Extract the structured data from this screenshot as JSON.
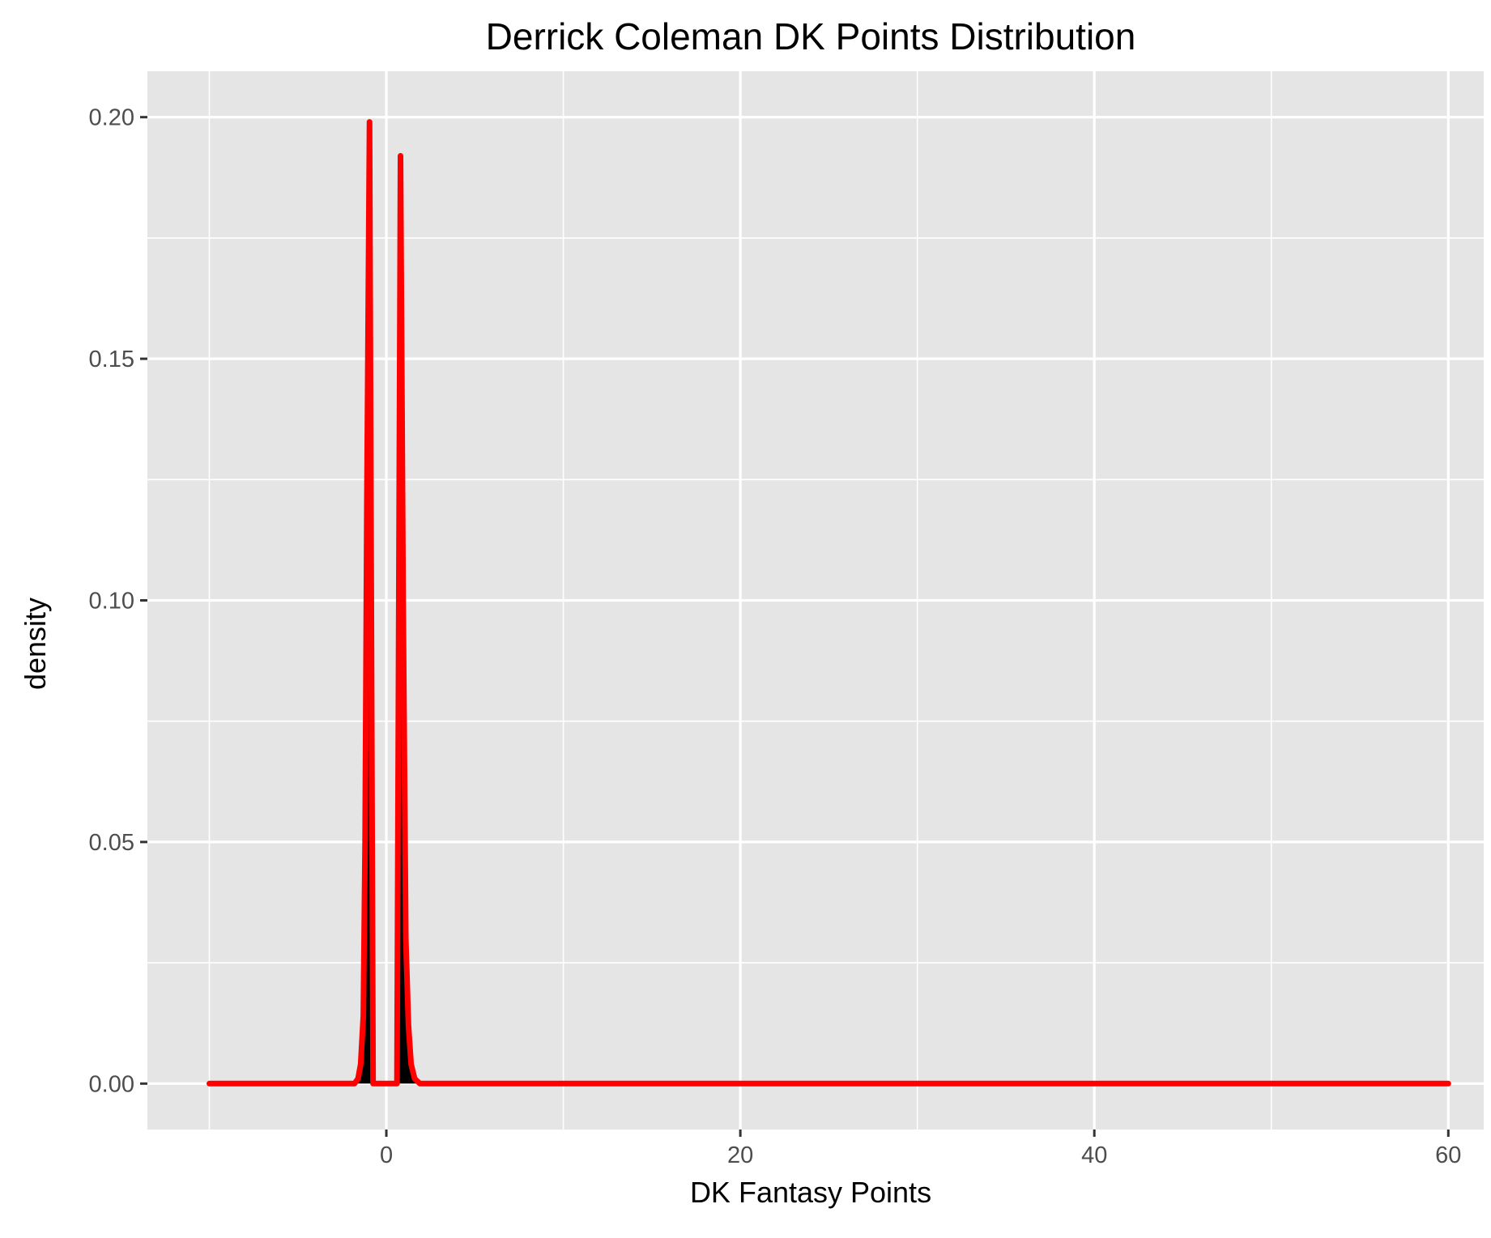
{
  "chart_data": {
    "type": "area",
    "title": "Derrick Coleman DK Points Distribution",
    "xlabel": "DK Fantasy Points",
    "ylabel": "density",
    "xlim": [
      -13.5,
      62
    ],
    "ylim": [
      -0.0095,
      0.2095
    ],
    "x_ticks": [
      0,
      20,
      40,
      60
    ],
    "x_tick_labels": [
      "0",
      "20",
      "40",
      "60"
    ],
    "y_ticks": [
      0.0,
      0.05,
      0.1,
      0.15,
      0.2
    ],
    "y_tick_labels": [
      "0.00",
      "0.05",
      "0.10",
      "0.15",
      "0.20"
    ],
    "grid": true,
    "legend": "none",
    "colors": {
      "panel_background": "#e5e5e5",
      "grid_lines": "#ffffff",
      "area_fill": "#000000",
      "line": "#ff0000",
      "tick_label": "#4d4d4d",
      "tick_mark": "#333333"
    },
    "series": [
      {
        "values": [
          {
            "x": -10,
            "y": 0
          },
          {
            "x": -1.8,
            "y": 0
          },
          {
            "x": -1.6,
            "y": 0.001
          },
          {
            "x": -1.45,
            "y": 0.004
          },
          {
            "x": -1.3,
            "y": 0.014
          },
          {
            "x": -1.2,
            "y": 0.05
          },
          {
            "x": -1.1,
            "y": 0.12
          },
          {
            "x": -0.95,
            "y": 0.199
          },
          {
            "x": -0.75,
            "y": 0
          },
          {
            "x": 0.6,
            "y": 0
          },
          {
            "x": 0.8,
            "y": 0.192
          },
          {
            "x": 0.95,
            "y": 0.1
          },
          {
            "x": 1.1,
            "y": 0.03
          },
          {
            "x": 1.25,
            "y": 0.012
          },
          {
            "x": 1.4,
            "y": 0.004
          },
          {
            "x": 1.6,
            "y": 0.001
          },
          {
            "x": 1.9,
            "y": 0
          },
          {
            "x": 60,
            "y": 0
          }
        ]
      }
    ]
  }
}
